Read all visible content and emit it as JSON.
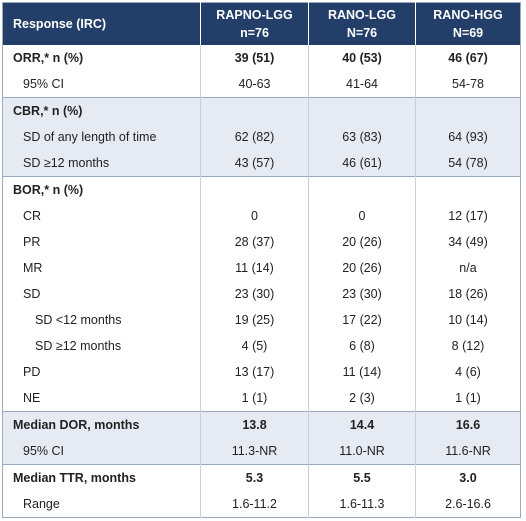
{
  "header": {
    "response": "Response (IRC)",
    "columns": [
      {
        "name": "RAPNO-LGG",
        "n": "n=76"
      },
      {
        "name": "RANO-LGG",
        "n": "N=76"
      },
      {
        "name": "RANO-HGG",
        "n": "N=69"
      }
    ]
  },
  "orr": {
    "label": "ORR,* n (%)",
    "values": [
      "39 (51)",
      "40 (53)",
      "46 (67)"
    ],
    "ci_label": "95% CI",
    "ci_values": [
      "40-63",
      "41-64",
      "54-78"
    ]
  },
  "cbr": {
    "label": "CBR,* n (%)",
    "rows": [
      {
        "label": "SD of any length of time",
        "values": [
          "62 (82)",
          "63 (83)",
          "64 (93)"
        ]
      },
      {
        "label": "SD ≥12 months",
        "values": [
          "43 (57)",
          "46 (61)",
          "54 (78)"
        ]
      }
    ]
  },
  "bor": {
    "label": "BOR,* n (%)",
    "rows": [
      {
        "label": "CR",
        "values": [
          "0",
          "0",
          "12 (17)"
        ]
      },
      {
        "label": "PR",
        "values": [
          "28 (37)",
          "20 (26)",
          "34 (49)"
        ]
      },
      {
        "label": "MR",
        "values": [
          "11 (14)",
          "20 (26)",
          "n/a"
        ]
      },
      {
        "label": "SD",
        "values": [
          "23 (30)",
          "23 (30)",
          "18 (26)"
        ]
      },
      {
        "label": "SD <12 months",
        "values": [
          "19 (25)",
          "17 (22)",
          "10 (14)"
        ]
      },
      {
        "label": "SD ≥12 months",
        "values": [
          "4 (5)",
          "6 (8)",
          "8 (12)"
        ]
      },
      {
        "label": "PD",
        "values": [
          "13 (17)",
          "11 (14)",
          "4 (6)"
        ]
      },
      {
        "label": "NE",
        "values": [
          "1 (1)",
          "2 (3)",
          "1 (1)"
        ]
      }
    ]
  },
  "dor": {
    "label": "Median DOR, months",
    "values": [
      "13.8",
      "14.4",
      "16.6"
    ],
    "ci_label": "95% CI",
    "ci_values": [
      "11.3-NR",
      "11.0-NR",
      "11.6-NR"
    ]
  },
  "ttr": {
    "label": "Median TTR, months",
    "values": [
      "5.3",
      "5.5",
      "3.0"
    ],
    "range_label": "Range",
    "range_values": [
      "1.6-11.2",
      "1.6-11.3",
      "2.6-16.6"
    ]
  }
}
